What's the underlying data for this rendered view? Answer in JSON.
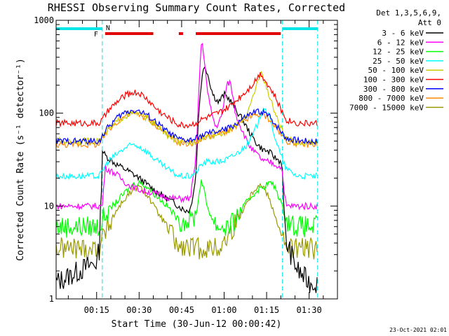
{
  "chart_data": {
    "type": "line",
    "title": "RHESSI Observing Summary Count Rates, Corrected",
    "ylabel": "Corrected Count Rate (s⁻¹ detector⁻¹)",
    "xlabel": "Start Time (30-Jun-12 00:00:42)",
    "y_scale": "log",
    "ylim": [
      1,
      1000
    ],
    "y_ticks": [
      {
        "value": 1,
        "label": "1"
      },
      {
        "value": 10,
        "label": "10"
      },
      {
        "value": 100,
        "label": "100"
      },
      {
        "value": 1000,
        "label": "1000"
      }
    ],
    "xlim": [
      0.7,
      100
    ],
    "x_ticks": [
      {
        "value": 15,
        "label": "00:15"
      },
      {
        "value": 30,
        "label": "00:30"
      },
      {
        "value": 45,
        "label": "00:45"
      },
      {
        "value": 60,
        "label": "01:00"
      },
      {
        "value": 75,
        "label": "01:15"
      },
      {
        "value": 90,
        "label": "01:30"
      }
    ],
    "grid": false,
    "legend_header": [
      "Det 1,3,5,6,9,",
      "Att 0"
    ],
    "legend_position": "top-right outside",
    "flags": {
      "night_bars_color": "#00e5e5",
      "flare_bars_color": "#e00000",
      "f_label": "F",
      "n_label": "N",
      "night_intervals": [
        [
          0.7,
          17
        ],
        [
          80.6,
          93
        ]
      ],
      "flare_intervals": [
        [
          18,
          35
        ],
        [
          44,
          45.5
        ],
        [
          50,
          80
        ]
      ],
      "night_boundaries": [
        17,
        80.6,
        93
      ]
    },
    "timestamp": "23-Oct-2021 02:01",
    "series": [
      {
        "name": "3 - 6 keV",
        "color": "#000000",
        "x": [
          0.7,
          15,
          16,
          17,
          18,
          22,
          26,
          30,
          34,
          38,
          42,
          46,
          48,
          50,
          51,
          52,
          53,
          54,
          56,
          58,
          60,
          62,
          64,
          66,
          68,
          70,
          72,
          74,
          76,
          78,
          80,
          80.6,
          81,
          82,
          86,
          90,
          93
        ],
        "y": [
          1.5,
          2.5,
          3.5,
          40,
          35,
          28,
          24,
          20,
          16,
          13,
          11,
          9,
          9,
          20,
          100,
          220,
          330,
          280,
          160,
          130,
          160,
          140,
          110,
          90,
          70,
          55,
          45,
          40,
          38,
          33,
          30,
          26,
          10,
          4,
          2,
          1.5,
          1.5
        ]
      },
      {
        "name": "6 - 12 keV",
        "color": "#ff00ff",
        "x": [
          0.7,
          16,
          17,
          18,
          22,
          26,
          30,
          34,
          38,
          42,
          46,
          48,
          50,
          51,
          52,
          53,
          54,
          55,
          57,
          59,
          61,
          62,
          63,
          64,
          66,
          68,
          70,
          72,
          74,
          76,
          78,
          80,
          80.6,
          81,
          82,
          86,
          90,
          93
        ],
        "y": [
          10,
          10,
          10,
          26,
          22,
          17,
          15,
          14,
          13,
          12,
          12,
          12,
          30,
          160,
          600,
          400,
          180,
          120,
          70,
          90,
          200,
          220,
          160,
          100,
          70,
          50,
          40,
          35,
          30,
          30,
          28,
          26,
          25,
          15,
          10,
          10,
          10,
          10
        ]
      },
      {
        "name": "12 - 25 keV",
        "color": "#00ff00",
        "x": [
          0.7,
          16,
          17,
          19,
          22,
          25,
          28,
          30,
          33,
          36,
          40,
          44,
          46,
          48,
          50,
          51,
          52,
          53,
          54,
          56,
          58,
          60,
          62,
          64,
          66,
          68,
          70,
          72,
          74,
          76,
          78,
          80,
          82,
          86,
          90,
          93
        ],
        "y": [
          6,
          6,
          7,
          9,
          11,
          14,
          17,
          18,
          16,
          13,
          10,
          7,
          7,
          7,
          8,
          12,
          20,
          14,
          10,
          7,
          6,
          6,
          6,
          7,
          9,
          11,
          13,
          15,
          16,
          18,
          16,
          11,
          7,
          6,
          6,
          6
        ]
      },
      {
        "name": "25 - 50 keV",
        "color": "#00ffff",
        "x": [
          0.7,
          16,
          17,
          19,
          22,
          25,
          28,
          30,
          33,
          36,
          40,
          44,
          46,
          48,
          50,
          52,
          54,
          56,
          58,
          60,
          62,
          64,
          66,
          68,
          70,
          72,
          74,
          76,
          78,
          80,
          82,
          86,
          90,
          93
        ],
        "y": [
          21,
          21,
          24,
          30,
          36,
          42,
          46,
          44,
          38,
          31,
          25,
          21,
          21,
          21,
          23,
          28,
          30,
          30,
          30,
          31,
          33,
          36,
          40,
          46,
          56,
          80,
          120,
          90,
          55,
          35,
          25,
          21,
          21,
          21
        ]
      },
      {
        "name": "50 - 100 keV",
        "color": "#cccc00",
        "x": [
          0.7,
          16,
          17,
          19,
          22,
          25,
          28,
          30,
          33,
          36,
          40,
          44,
          46,
          48,
          50,
          52,
          54,
          56,
          58,
          60,
          62,
          64,
          66,
          68,
          70,
          72,
          73,
          74,
          76,
          78,
          80,
          82,
          86,
          90,
          93
        ],
        "y": [
          50,
          50,
          55,
          65,
          80,
          93,
          100,
          98,
          88,
          73,
          58,
          48,
          47,
          48,
          50,
          55,
          57,
          58,
          60,
          62,
          65,
          72,
          82,
          100,
          140,
          230,
          280,
          230,
          150,
          100,
          70,
          52,
          48,
          48,
          48
        ]
      },
      {
        "name": "100 - 300 keV",
        "color": "#ff0000",
        "x": [
          0.7,
          16,
          17,
          19,
          22,
          25,
          28,
          30,
          33,
          36,
          40,
          44,
          46,
          48,
          50,
          52,
          54,
          56,
          58,
          60,
          62,
          64,
          66,
          68,
          70,
          72,
          73,
          74,
          76,
          78,
          80,
          82,
          86,
          90,
          93
        ],
        "y": [
          78,
          78,
          85,
          105,
          130,
          155,
          168,
          165,
          140,
          112,
          90,
          75,
          74,
          75,
          78,
          85,
          90,
          95,
          100,
          108,
          118,
          135,
          155,
          175,
          205,
          250,
          270,
          240,
          190,
          150,
          110,
          85,
          78,
          78,
          78
        ]
      },
      {
        "name": "300 - 800 keV",
        "color": "#0000ff",
        "x": [
          0.7,
          16,
          17,
          19,
          22,
          25,
          28,
          30,
          33,
          36,
          40,
          44,
          46,
          48,
          50,
          52,
          54,
          56,
          58,
          60,
          62,
          64,
          66,
          68,
          70,
          72,
          74,
          76,
          78,
          80,
          82,
          86,
          90,
          93
        ],
        "y": [
          50,
          50,
          57,
          70,
          88,
          102,
          108,
          105,
          95,
          80,
          63,
          52,
          51,
          51,
          53,
          57,
          60,
          62,
          64,
          66,
          70,
          76,
          84,
          92,
          100,
          104,
          102,
          92,
          78,
          64,
          54,
          51,
          50,
          50
        ]
      },
      {
        "name": "800 - 7000 keV",
        "color": "#ff8800",
        "x": [
          0.7,
          16,
          17,
          19,
          22,
          25,
          28,
          30,
          33,
          36,
          40,
          44,
          46,
          48,
          50,
          52,
          54,
          56,
          58,
          60,
          62,
          64,
          66,
          68,
          70,
          72,
          74,
          76,
          78,
          80,
          82,
          86,
          90,
          93
        ],
        "y": [
          46,
          46,
          52,
          64,
          80,
          94,
          100,
          97,
          88,
          74,
          59,
          48,
          47,
          47,
          49,
          53,
          56,
          58,
          60,
          62,
          65,
          70,
          78,
          86,
          93,
          97,
          95,
          86,
          72,
          59,
          50,
          47,
          46,
          46
        ]
      },
      {
        "name": "7000 - 15000 keV",
        "color": "#999900",
        "x": [
          0.7,
          16,
          17,
          19,
          22,
          25,
          28,
          30,
          33,
          36,
          40,
          44,
          46,
          48,
          50,
          52,
          54,
          56,
          58,
          60,
          62,
          64,
          66,
          68,
          70,
          72,
          74,
          76,
          78,
          80,
          82,
          86,
          90,
          93
        ],
        "y": [
          3.5,
          3.5,
          4.5,
          6,
          9,
          12,
          15,
          16,
          13,
          9,
          6,
          3.5,
          3.5,
          3.5,
          3.5,
          3.5,
          3.5,
          3.5,
          3.5,
          4,
          5,
          6.5,
          8.5,
          11,
          14,
          17,
          16,
          12,
          8,
          5,
          3.5,
          3.5,
          3.5,
          3.5
        ]
      }
    ]
  }
}
